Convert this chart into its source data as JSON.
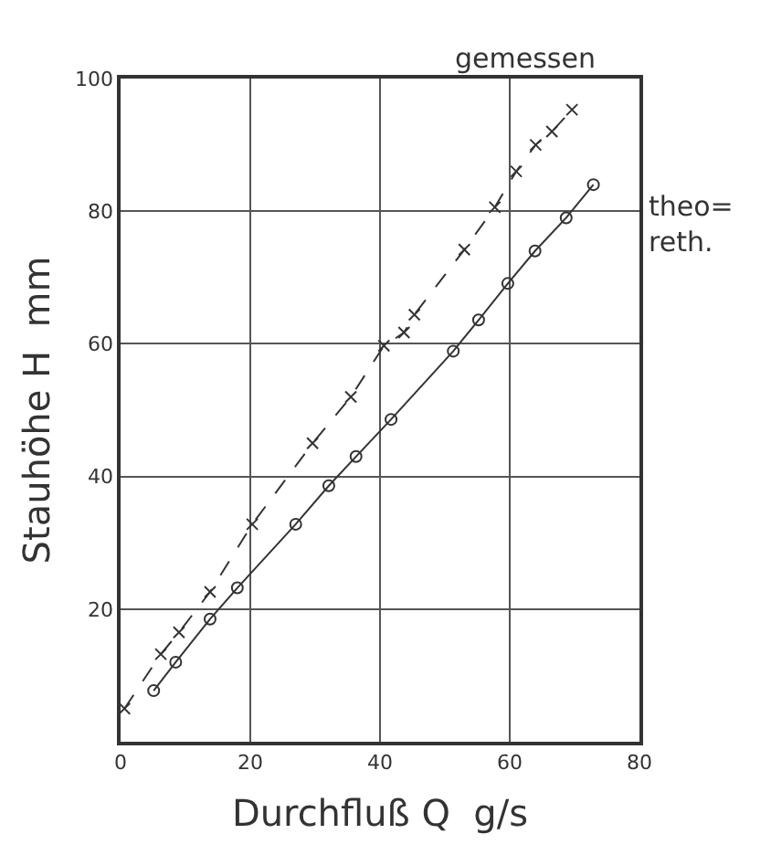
{
  "chart_data": {
    "type": "line",
    "xlabel": "Durchfluß Q  g/s",
    "ylabel": "Stauhöhe H  mm",
    "xlim": [
      0,
      80
    ],
    "xticks": [
      0,
      20,
      40,
      60,
      80
    ],
    "ylim": [
      0,
      100
    ],
    "yticks": [
      20,
      40,
      60,
      80,
      100
    ],
    "grid": true,
    "series": [
      {
        "name": "gemessen",
        "color": "#333333",
        "marker": "cross",
        "line_style": "dashed",
        "x": [
          0.6,
          6.2,
          9,
          13.8,
          20.3,
          29.6,
          35.5,
          40.6,
          43.7,
          45.3,
          53,
          57.7,
          61,
          64,
          66.5,
          69.6
        ],
        "values": [
          5,
          13.2,
          16.5,
          22.6,
          32.8,
          45,
          52,
          59.7,
          61.7,
          64.4,
          74.2,
          80.6,
          86,
          90,
          92,
          95.3
        ]
      },
      {
        "name": "theo=\nreth.",
        "color": "#333333",
        "marker": "circle",
        "line_style": "solid",
        "x": [
          5.1,
          8.5,
          13.8,
          18,
          27,
          32.1,
          36.3,
          41.7,
          51.3,
          55.2,
          59.7,
          63.9,
          68.7,
          72.9
        ],
        "values": [
          7.7,
          12,
          18.5,
          23.2,
          32.8,
          38.6,
          43,
          48.6,
          58.9,
          63.6,
          69.1,
          74,
          79,
          84
        ]
      }
    ]
  }
}
